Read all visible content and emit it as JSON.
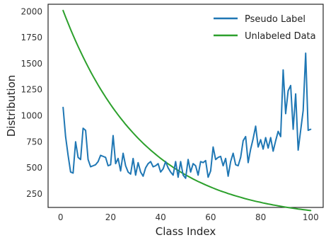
{
  "chart_data": {
    "type": "line",
    "xlabel": "Class Index",
    "ylabel": "Distribution",
    "xlim": [
      -5,
      105
    ],
    "ylim": [
      120,
      2070
    ],
    "xticks": [
      0,
      20,
      40,
      60,
      80,
      100
    ],
    "yticks": [
      250,
      500,
      750,
      1000,
      1250,
      1500,
      1750,
      2000
    ],
    "grid": false,
    "legend_position": "top-right",
    "series": [
      {
        "name": "Pseudo Label",
        "color": "#1f77b4",
        "x": [
          1,
          2,
          3,
          4,
          5,
          6,
          7,
          8,
          9,
          10,
          11,
          12,
          13,
          14,
          15,
          16,
          17,
          18,
          19,
          20,
          21,
          22,
          23,
          24,
          25,
          26,
          27,
          28,
          29,
          30,
          31,
          32,
          33,
          34,
          35,
          36,
          37,
          38,
          39,
          40,
          41,
          42,
          43,
          44,
          45,
          46,
          47,
          48,
          49,
          50,
          51,
          52,
          53,
          54,
          55,
          56,
          57,
          58,
          59,
          60,
          61,
          62,
          63,
          64,
          65,
          66,
          67,
          68,
          69,
          70,
          71,
          72,
          73,
          74,
          75,
          76,
          77,
          78,
          79,
          80,
          81,
          82,
          83,
          84,
          85,
          86,
          87,
          88,
          89,
          90,
          91,
          92,
          93,
          94,
          95,
          96,
          97,
          98,
          99,
          100
        ],
        "values": [
          1080,
          800,
          620,
          460,
          450,
          750,
          600,
          580,
          880,
          860,
          580,
          510,
          520,
          530,
          560,
          620,
          610,
          600,
          520,
          530,
          810,
          540,
          590,
          470,
          640,
          520,
          460,
          440,
          590,
          430,
          550,
          460,
          420,
          500,
          540,
          560,
          510,
          520,
          540,
          460,
          490,
          560,
          500,
          460,
          430,
          560,
          410,
          560,
          430,
          400,
          580,
          460,
          540,
          520,
          430,
          560,
          550,
          570,
          410,
          470,
          700,
          580,
          600,
          610,
          520,
          590,
          420,
          560,
          640,
          530,
          520,
          600,
          760,
          800,
          550,
          680,
          780,
          900,
          700,
          770,
          680,
          790,
          690,
          790,
          660,
          760,
          850,
          800,
          1440,
          1020,
          1240,
          1290,
          870,
          1210,
          670,
          860,
          1050,
          1600,
          860,
          870
        ]
      },
      {
        "name": "Unlabeled Data",
        "color": "#2ca02c",
        "x_range": [
          1,
          100
        ],
        "decay": {
          "start": 2010,
          "end": 90
        },
        "values": []
      }
    ]
  }
}
